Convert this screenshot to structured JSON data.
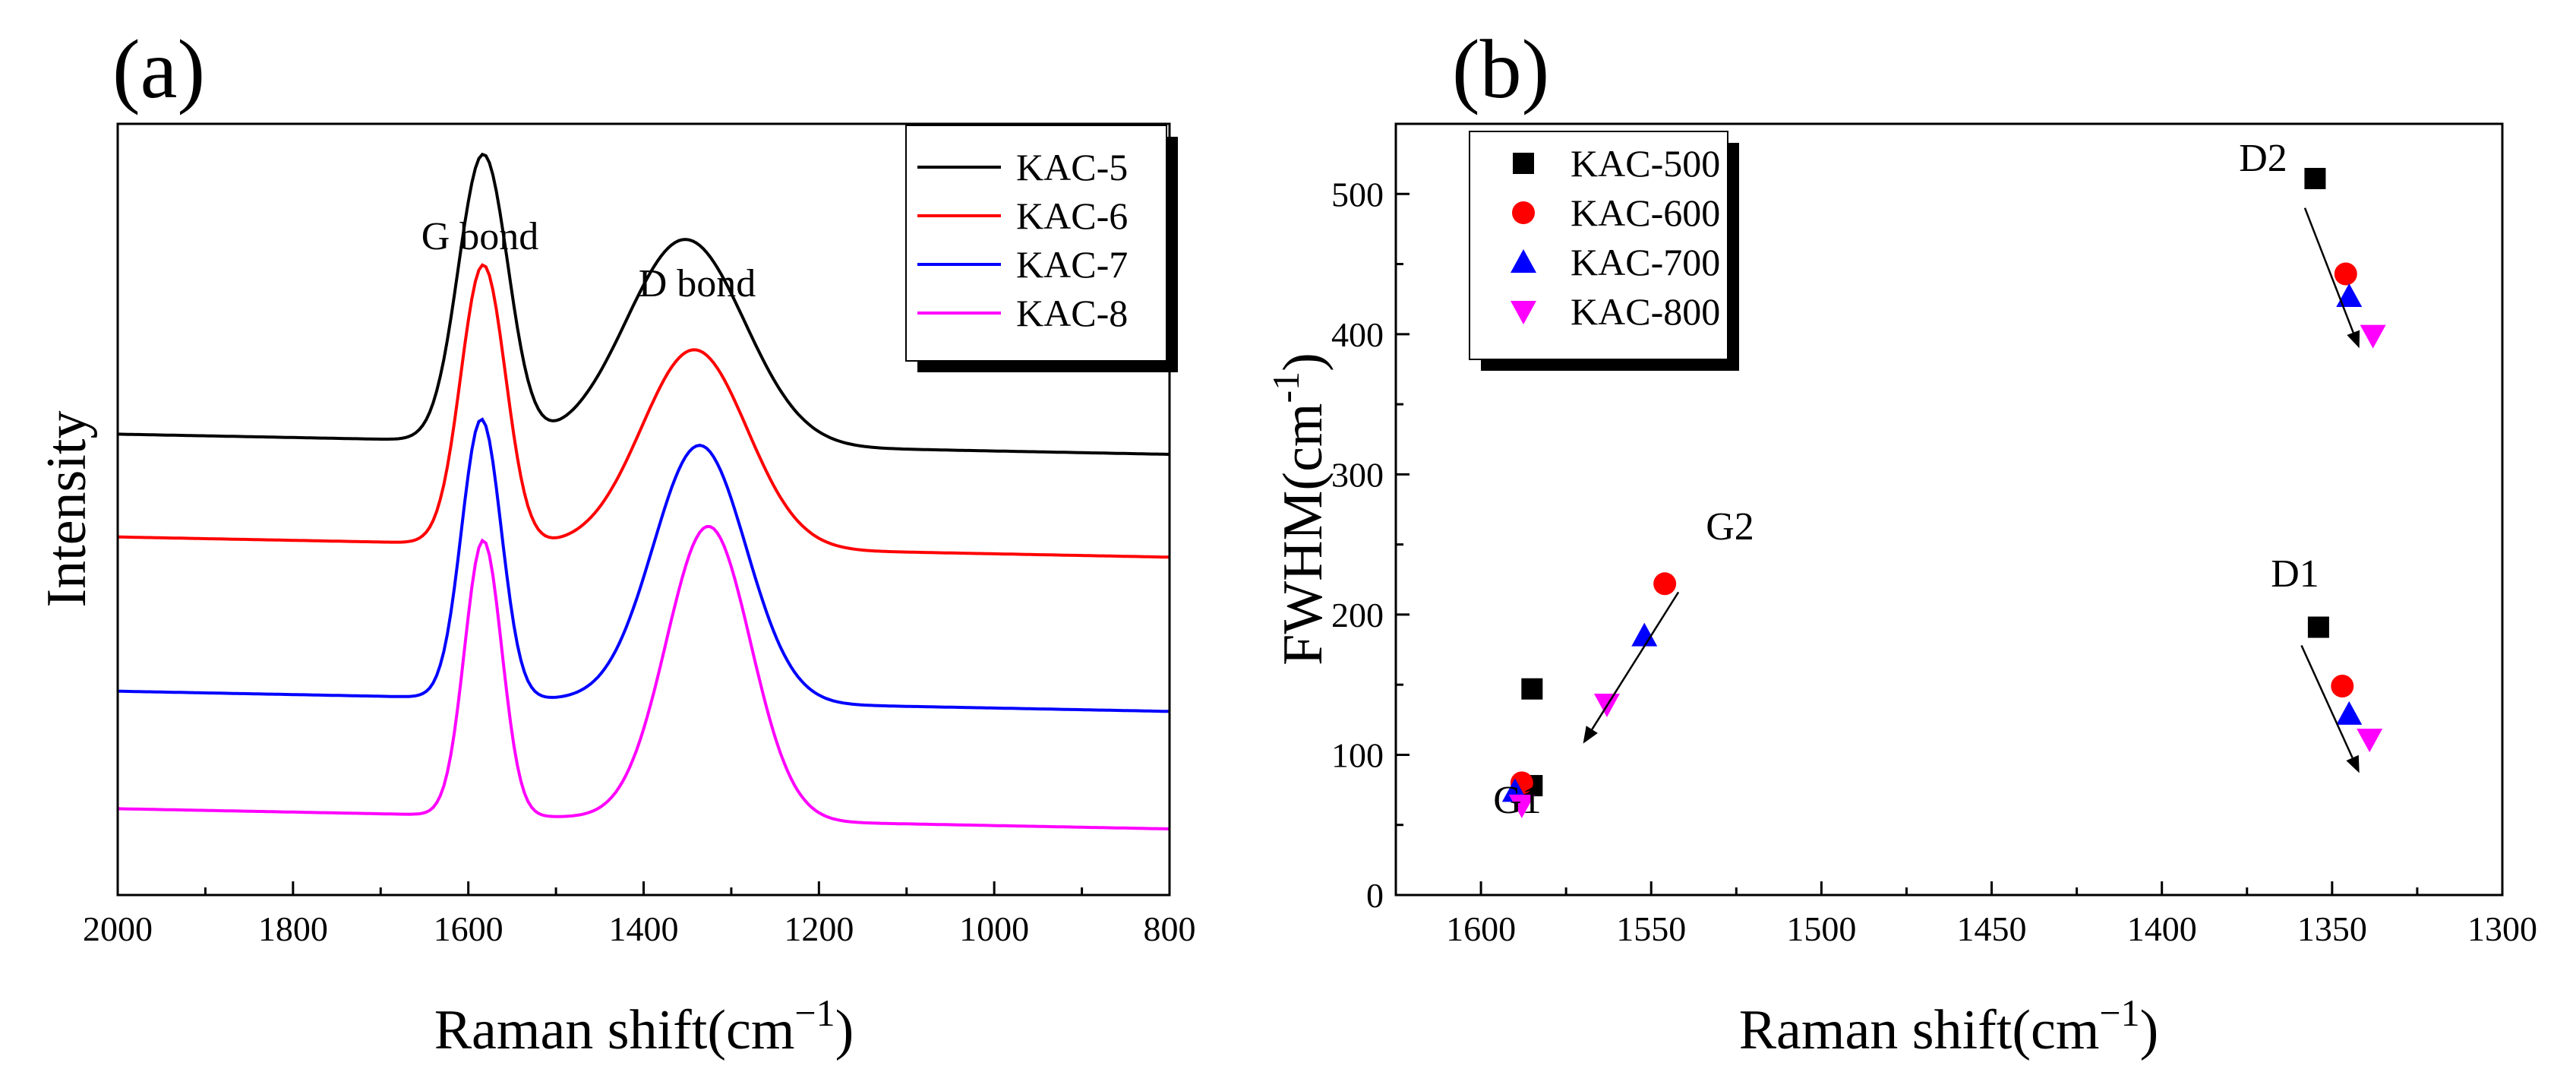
{
  "chart_data": [
    {
      "panel_label": "(a)",
      "type": "line",
      "xlabel": "Raman shift(cm",
      "xlabel_sup": "−1",
      "xlabel_end": ")",
      "ylabel": "Intensity",
      "xlim": [
        2000,
        800
      ],
      "xticks": [
        "2000",
        "1800",
        "1600",
        "1400",
        "1200",
        "1000",
        "800"
      ],
      "annotations": [
        "G bond",
        "D bond"
      ],
      "legend_position": "top-right",
      "y_note": "arbitrary intensity units, curves vertically offset",
      "series": [
        {
          "name": "KAC-5",
          "color": "#000000",
          "baseline": 12.0,
          "g": {
            "center": 1583,
            "width": 40,
            "amp": 7.8
          },
          "d": {
            "center": 1352,
            "width": 95,
            "amp": 5.6
          }
        },
        {
          "name": "KAC-6",
          "color": "#ff0000",
          "baseline": 9.2,
          "g": {
            "center": 1583,
            "width": 36,
            "amp": 7.6
          },
          "d": {
            "center": 1342,
            "width": 85,
            "amp": 5.4
          }
        },
        {
          "name": "KAC-7",
          "color": "#0000ff",
          "baseline": 5.0,
          "g": {
            "center": 1585,
            "width": 32,
            "amp": 7.6
          },
          "d": {
            "center": 1336,
            "width": 75,
            "amp": 7.0
          }
        },
        {
          "name": "KAC-8",
          "color": "#ff00ff",
          "baseline": 1.8,
          "g": {
            "center": 1583,
            "width": 30,
            "amp": 7.5
          },
          "d": {
            "center": 1326,
            "width": 68,
            "amp": 8.0
          }
        }
      ]
    },
    {
      "panel_label": "(b)",
      "type": "scatter",
      "xlabel": "Raman shift(cm",
      "xlabel_sup": "−1",
      "xlabel_end": ")",
      "ylabel": "FWHM(cm",
      "ylabel_sup": "-1",
      "ylabel_end": ")",
      "xlim": [
        1625,
        1300
      ],
      "ylim": [
        0,
        550
      ],
      "xticks": [
        "1600",
        "1550",
        "1500",
        "1450",
        "1400",
        "1350",
        "1300"
      ],
      "yticks": [
        "0",
        "100",
        "200",
        "300",
        "400",
        "500"
      ],
      "annotations": [
        "D2",
        "G2",
        "D1",
        "G1"
      ],
      "legend_position": "top-left",
      "series": [
        {
          "name": "KAC-500",
          "marker": "square",
          "color": "#000000",
          "x": [
            1585,
            1585,
            1355,
            1354
          ],
          "y": [
            78,
            147,
            511,
            191
          ]
        },
        {
          "name": "KAC-600",
          "marker": "circle",
          "color": "#ff0000",
          "x": [
            1588,
            1546,
            1346,
            1347
          ],
          "y": [
            80,
            222,
            443,
            149
          ]
        },
        {
          "name": "KAC-700",
          "marker": "triangle-up",
          "color": "#0000ff",
          "x": [
            1590,
            1552,
            1345,
            1345
          ],
          "y": [
            74,
            185,
            427,
            129
          ]
        },
        {
          "name": "KAC-800",
          "marker": "triangle-down",
          "color": "#ff00ff",
          "x": [
            1588,
            1563,
            1338,
            1339
          ],
          "y": [
            64,
            136,
            399,
            111
          ]
        }
      ]
    }
  ]
}
